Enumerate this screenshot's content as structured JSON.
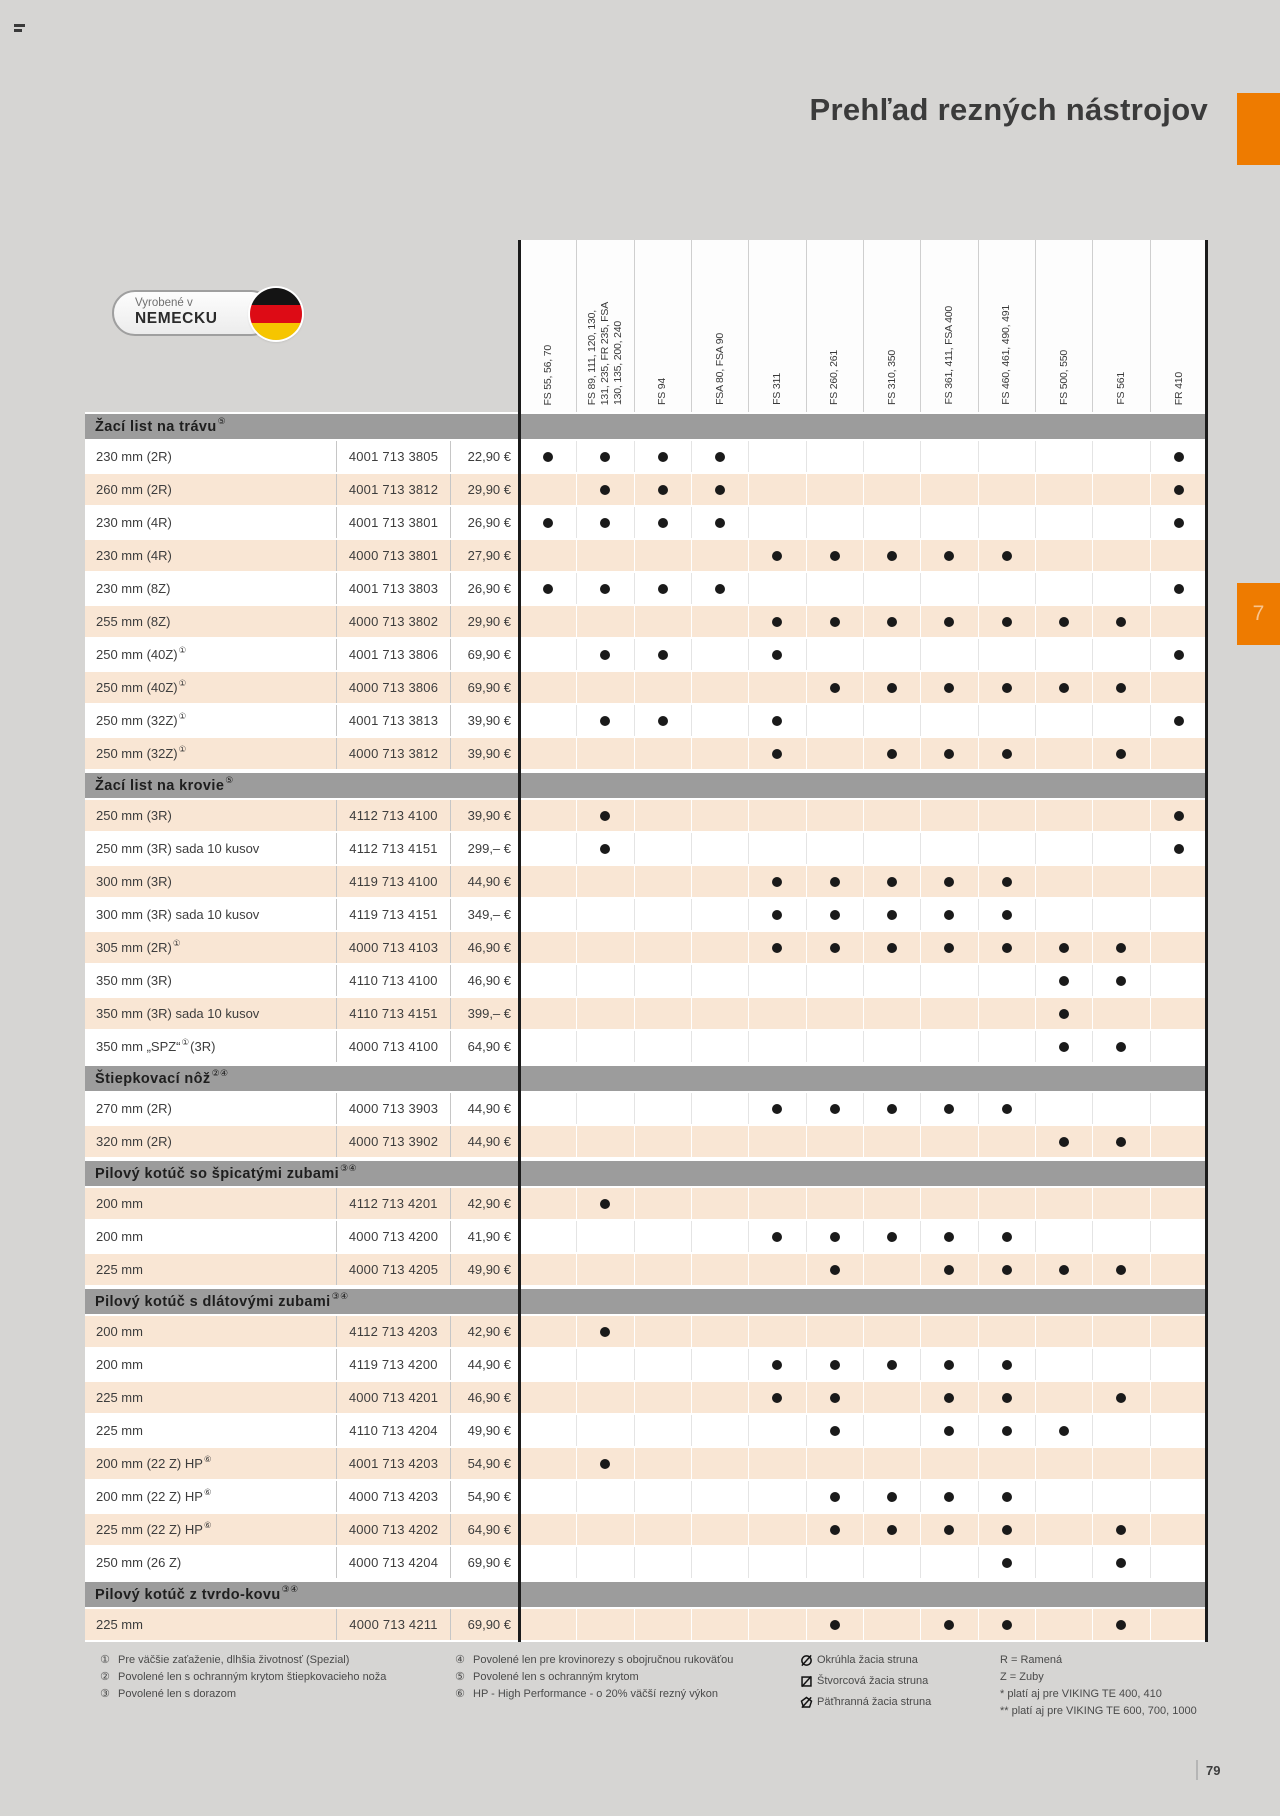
{
  "page": {
    "title": "Prehľad rezných nástrojov",
    "chapter_tab": "7",
    "page_number": "79",
    "badge": {
      "line1": "Vyrobené v",
      "line2": "NEMECKU"
    },
    "colors": {
      "orange": "#ee7b00",
      "peach": "#f9e6d4",
      "section_bar": "#9c9c9c",
      "page_background": "#d6d5d3",
      "dot": "#1a1a1a"
    }
  },
  "machine_columns": [
    {
      "lines": [
        "FS 55, 56, 70"
      ]
    },
    {
      "lines": [
        "FS 89, 111, 120, 130,",
        "131, 235, FR 235, FSA",
        "130, 135, 200, 240"
      ]
    },
    {
      "lines": [
        "FS 94"
      ]
    },
    {
      "lines": [
        "FSA 80, FSA 90"
      ]
    },
    {
      "lines": [
        "FS 311"
      ]
    },
    {
      "lines": [
        "FS 260, 261"
      ]
    },
    {
      "lines": [
        "FS 310, 350"
      ]
    },
    {
      "lines": [
        "FS 361, 411, FSA 400"
      ]
    },
    {
      "lines": [
        "FS 460, 461, 490, 491"
      ]
    },
    {
      "lines": [
        "FS 500, 550"
      ]
    },
    {
      "lines": [
        "FS 561"
      ]
    },
    {
      "lines": [
        "FR 410"
      ]
    }
  ],
  "sections": [
    {
      "title": "Žací list na trávu",
      "sup": "⑤",
      "rows": [
        {
          "label": "230 mm (2R)",
          "code": "4001 713 3805",
          "price": "22,90 €",
          "shade": false,
          "dots": [
            1,
            2,
            3,
            4,
            12
          ]
        },
        {
          "label": "260 mm (2R)",
          "code": "4001 713 3812",
          "price": "29,90 €",
          "shade": true,
          "dots": [
            2,
            3,
            4,
            12
          ]
        },
        {
          "label": "230 mm (4R)",
          "code": "4001 713 3801",
          "price": "26,90 €",
          "shade": false,
          "dots": [
            1,
            2,
            3,
            4,
            12
          ]
        },
        {
          "label": "230 mm (4R)",
          "code": "4000 713 3801",
          "price": "27,90 €",
          "shade": true,
          "dots": [
            5,
            6,
            7,
            8,
            9
          ]
        },
        {
          "label": "230 mm (8Z)",
          "code": "4001 713 3803",
          "price": "26,90 €",
          "shade": false,
          "dots": [
            1,
            2,
            3,
            4,
            12
          ]
        },
        {
          "label": "255 mm (8Z)",
          "code": "4000 713 3802",
          "price": "29,90 €",
          "shade": true,
          "dots": [
            5,
            6,
            7,
            8,
            9,
            10,
            11
          ]
        },
        {
          "label": "250 mm (40Z)",
          "sup": "①",
          "code": "4001 713 3806",
          "price": "69,90 €",
          "shade": false,
          "dots": [
            2,
            3,
            5,
            12
          ]
        },
        {
          "label": "250 mm (40Z)",
          "sup": "①",
          "code": "4000 713 3806",
          "price": "69,90 €",
          "shade": true,
          "dots": [
            6,
            7,
            8,
            9,
            10,
            11
          ]
        },
        {
          "label": "250 mm (32Z)",
          "sup": "①",
          "code": "4001 713 3813",
          "price": "39,90 €",
          "shade": false,
          "dots": [
            2,
            3,
            5,
            12
          ]
        },
        {
          "label": "250 mm (32Z)",
          "sup": "①",
          "code": "4000 713 3812",
          "price": "39,90 €",
          "shade": true,
          "dots": [
            5,
            7,
            8,
            9,
            11
          ]
        }
      ]
    },
    {
      "title": "Žací list na krovie",
      "sup": "⑤",
      "rows": [
        {
          "label": "250 mm (3R)",
          "code": "4112 713 4100",
          "price": "39,90 €",
          "shade": true,
          "dots": [
            2,
            12
          ]
        },
        {
          "label": "250 mm (3R) sada 10 kusov",
          "code": "4112 713 4151",
          "price": "299,– €",
          "shade": false,
          "dots": [
            2,
            12
          ]
        },
        {
          "label": "300 mm (3R)",
          "code": "4119 713 4100",
          "price": "44,90 €",
          "shade": true,
          "dots": [
            5,
            6,
            7,
            8,
            9
          ]
        },
        {
          "label": "300 mm (3R) sada 10 kusov",
          "code": "4119 713 4151",
          "price": "349,– €",
          "shade": false,
          "dots": [
            5,
            6,
            7,
            8,
            9
          ]
        },
        {
          "label": "305 mm (2R)",
          "sup": "①",
          "code": "4000 713 4103",
          "price": "46,90 €",
          "shade": true,
          "dots": [
            5,
            6,
            7,
            8,
            9,
            10,
            11
          ]
        },
        {
          "label": "350 mm (3R)",
          "code": "4110 713 4100",
          "price": "46,90 €",
          "shade": false,
          "dots": [
            10,
            11
          ]
        },
        {
          "label": "350 mm (3R) sada 10 kusov",
          "code": "4110 713 4151",
          "price": "399,– €",
          "shade": true,
          "dots": [
            10
          ]
        },
        {
          "label": "350 mm „SPZ“",
          "sup": "①",
          "suffix": "(3R)",
          "code": "4000 713 4100",
          "price": "64,90 €",
          "shade": false,
          "dots": [
            10,
            11
          ]
        }
      ]
    },
    {
      "title": "Štiepkovací nôž",
      "sup": "②④",
      "rows": [
        {
          "label": "270 mm (2R)",
          "code": "4000 713 3903",
          "price": "44,90 €",
          "shade": false,
          "dots": [
            5,
            6,
            7,
            8,
            9
          ]
        },
        {
          "label": "320 mm (2R)",
          "code": "4000 713 3902",
          "price": "44,90 €",
          "shade": true,
          "dots": [
            10,
            11
          ]
        }
      ]
    },
    {
      "title": "Pilový kotúč so špicatými zubami",
      "sup": "③④",
      "rows": [
        {
          "label": "200 mm",
          "code": "4112 713 4201",
          "price": "42,90 €",
          "shade": true,
          "dots": [
            2
          ]
        },
        {
          "label": "200 mm",
          "code": "4000 713 4200",
          "price": "41,90 €",
          "shade": false,
          "dots": [
            5,
            6,
            7,
            8,
            9
          ]
        },
        {
          "label": "225 mm",
          "code": "4000 713 4205",
          "price": "49,90 €",
          "shade": true,
          "dots": [
            6,
            8,
            9,
            10,
            11
          ]
        }
      ]
    },
    {
      "title": "Pilový kotúč s dlátovými zubami",
      "sup": "③④",
      "rows": [
        {
          "label": "200 mm",
          "code": "4112 713 4203",
          "price": "42,90 €",
          "shade": true,
          "dots": [
            2
          ]
        },
        {
          "label": "200 mm",
          "code": "4119 713 4200",
          "price": "44,90 €",
          "shade": false,
          "dots": [
            5,
            6,
            7,
            8,
            9
          ]
        },
        {
          "label": "225 mm",
          "code": "4000 713 4201",
          "price": "46,90 €",
          "shade": true,
          "dots": [
            5,
            6,
            8,
            9,
            11
          ]
        },
        {
          "label": "225 mm",
          "code": "4110 713 4204",
          "price": "49,90 €",
          "shade": false,
          "dots": [
            6,
            8,
            9,
            10
          ]
        },
        {
          "label": "200 mm (22 Z) HP",
          "sup": "⑥",
          "code": "4001 713 4203",
          "price": "54,90 €",
          "shade": true,
          "dots": [
            2
          ]
        },
        {
          "label": "200 mm (22 Z) HP",
          "sup": "⑥",
          "code": "4000 713 4203",
          "price": "54,90 €",
          "shade": false,
          "dots": [
            6,
            7,
            8,
            9
          ]
        },
        {
          "label": "225 mm (22 Z) HP",
          "sup": "⑥",
          "code": "4000 713 4202",
          "price": "64,90 €",
          "shade": true,
          "dots": [
            6,
            7,
            8,
            9,
            11
          ]
        },
        {
          "label": "250 mm (26 Z)",
          "code": "4000 713 4204",
          "price": "69,90 €",
          "shade": false,
          "dots": [
            9,
            11
          ]
        }
      ]
    },
    {
      "title": "Pilový kotúč z tvrdo-kovu",
      "sup": "③④",
      "rows": [
        {
          "label": "225 mm",
          "code": "4000 713 4211",
          "price": "69,90 €",
          "shade": true,
          "dots": [
            6,
            8,
            9,
            11
          ]
        }
      ]
    }
  ],
  "footnotes": {
    "col1": [
      {
        "mark": "①",
        "text": "Pre väčšie zaťaženie, dlhšia životnosť (Spezial)"
      },
      {
        "mark": "②",
        "text": "Povolené len s ochranným krytom štiepkovacieho noža"
      },
      {
        "mark": "③",
        "text": "Povolené len s dorazom"
      }
    ],
    "col2": [
      {
        "mark": "④",
        "text": "Povolené len pre krovinorezy s obojručnou rukoväťou"
      },
      {
        "mark": "⑤",
        "text": "Povolené len s ochranným krytom"
      },
      {
        "mark": "⑥",
        "text": "HP - High Performance - o 20% väčší rezný výkon"
      }
    ],
    "col3": [
      {
        "icon": "circle",
        "text": "Okrúhla žacia struna"
      },
      {
        "icon": "square",
        "text": "Štvorcová žacia struna"
      },
      {
        "icon": "pentagon",
        "text": "Päťhranná žacia struna"
      }
    ],
    "col4": [
      "R = Ramená",
      "Z = Zuby",
      "*   platí aj pre VIKING TE 400, 410",
      "** platí aj pre VIKING TE 600, 700, 1000"
    ]
  }
}
